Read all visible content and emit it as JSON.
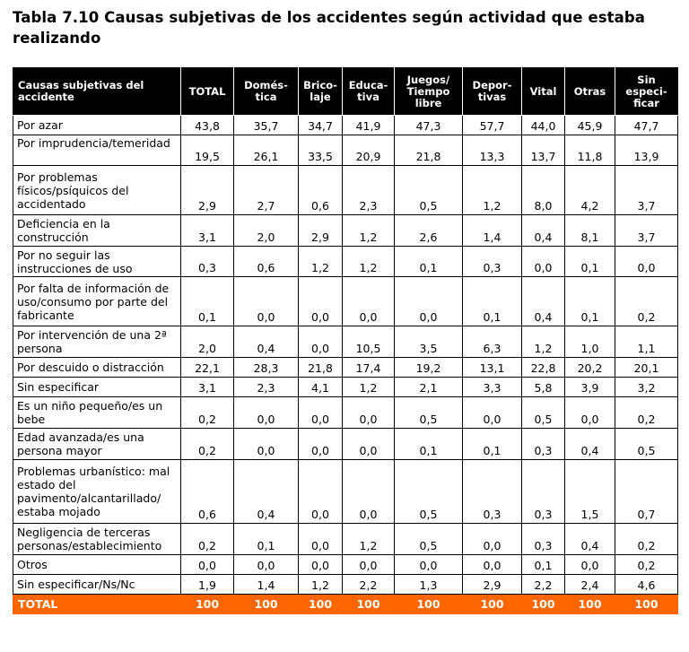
{
  "title": "Tabla 7.10 Causas subjetivas de los accidentes según actividad que estaba realizando",
  "colors": {
    "header_bg": "#000000",
    "header_text": "#ffffff",
    "total_bg": "#ff6600",
    "total_text": "#ffffff"
  },
  "headers": [
    "Causas subjetivas del accidente",
    "TOTAL",
    "Domés-\ntica",
    "Brico-\nlaje",
    "Educa-\ntiva",
    "Juegos/\nTiempo\nlibre",
    "Depor-\ntivas",
    "Vital",
    "Otras",
    "Sin\nespeci-\nficar"
  ],
  "rows": [
    {
      "cause": "Por azar",
      "values": [
        "43,8",
        "35,7",
        "34,7",
        "41,9",
        "47,3",
        "57,7",
        "44,0",
        "45,9",
        "47,7"
      ]
    },
    {
      "cause": "Por imprudencia/temeridad",
      "values": [
        "19,5",
        "26,1",
        "33,5",
        "20,9",
        "21,8",
        "13,3",
        "13,7",
        "11,8",
        "13,9"
      ]
    },
    {
      "cause": "Por problemas físicos/psíquicos del accidentado",
      "values": [
        "2,9",
        "2,7",
        "0,6",
        "2,3",
        "0,5",
        "1,2",
        "8,0",
        "4,2",
        "3,7"
      ]
    },
    {
      "cause": "Deficiencia en la construcción",
      "values": [
        "3,1",
        "2,0",
        "2,9",
        "1,2",
        "2,6",
        "1,4",
        "0,4",
        "8,1",
        "3,7"
      ]
    },
    {
      "cause": "Por no seguir las instrucciones de uso",
      "values": [
        "0,3",
        "0,6",
        "1,2",
        "1,2",
        "0,1",
        "0,3",
        "0,0",
        "0,1",
        "0,0"
      ]
    },
    {
      "cause": "Por falta de información de uso/consumo por parte del fabricante",
      "values": [
        "0,1",
        "0,0",
        "0,0",
        "0,0",
        "0,0",
        "0,1",
        "0,4",
        "0,1",
        "0,2"
      ]
    },
    {
      "cause": "Por intervención de una 2ª persona",
      "values": [
        "2,0",
        "0,4",
        "0,0",
        "10,5",
        "3,5",
        "6,3",
        "1,2",
        "1,0",
        "1,1"
      ]
    },
    {
      "cause": "Por descuido o distracción",
      "values": [
        "22,1",
        "28,3",
        "21,8",
        "17,4",
        "19,2",
        "13,1",
        "22,8",
        "20,2",
        "20,1"
      ]
    },
    {
      "cause": "Sin especificar",
      "values": [
        "3,1",
        "2,3",
        "4,1",
        "1,2",
        "2,1",
        "3,3",
        "5,8",
        "3,9",
        "3,2"
      ]
    },
    {
      "cause": "Es un niño pequeño/es un bebe",
      "values": [
        "0,2",
        "0,0",
        "0,0",
        "0,0",
        "0,5",
        "0,0",
        "0,5",
        "0,0",
        "0,2"
      ]
    },
    {
      "cause": "Edad avanzada/es una persona mayor",
      "values": [
        "0,2",
        "0,0",
        "0,0",
        "0,0",
        "0,1",
        "0,1",
        "0,3",
        "0,4",
        "0,5"
      ]
    },
    {
      "cause": "Problemas urbanístico: mal estado del pavimento/alcantarillado/ estaba mojado",
      "values": [
        "0,6",
        "0,4",
        "0,0",
        "0,0",
        "0,5",
        "0,3",
        "0,3",
        "1,5",
        "0,7"
      ]
    },
    {
      "cause": "Negligencia de terceras personas/establecimiento",
      "values": [
        "0,2",
        "0,1",
        "0,0",
        "1,2",
        "0,5",
        "0,0",
        "0,3",
        "0,4",
        "0,2"
      ]
    },
    {
      "cause": "Otros",
      "values": [
        "0,0",
        "0,0",
        "0,0",
        "0,0",
        "0,0",
        "0,0",
        "0,1",
        "0,0",
        "0,2"
      ]
    },
    {
      "cause": "Sin especificar/Ns/Nc",
      "values": [
        "1,9",
        "1,4",
        "1,2",
        "2,2",
        "1,3",
        "2,9",
        "2,2",
        "2,4",
        "4,6"
      ]
    }
  ],
  "total_row": {
    "cause": "TOTAL",
    "values": [
      "100",
      "100",
      "100",
      "100",
      "100",
      "100",
      "100",
      "100",
      "100"
    ]
  }
}
